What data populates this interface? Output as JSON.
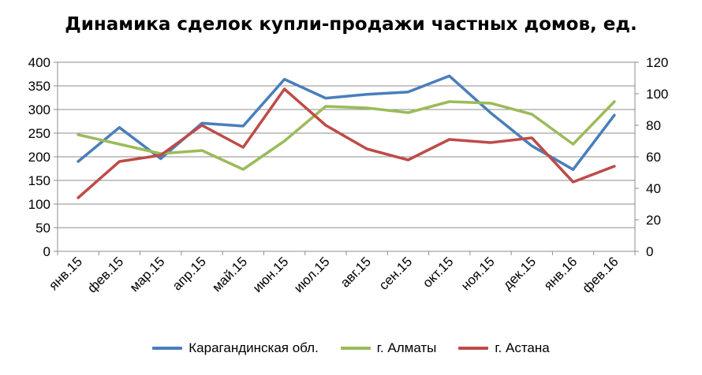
{
  "chart_data": {
    "type": "line",
    "title": "Динамика сделок купли-продажи частных домов, ед.",
    "categories": [
      "янв.15",
      "фев.15",
      "мар.15",
      "апр.15",
      "май.15",
      "июн.15",
      "июл.15",
      "авг.15",
      "сен.15",
      "окт.15",
      "ноя.15",
      "дек.15",
      "янв.16",
      "фев.16"
    ],
    "y_left": {
      "min": 0,
      "max": 400,
      "step": 50,
      "ticks": [
        "0",
        "50",
        "100",
        "150",
        "200",
        "250",
        "300",
        "350",
        "400"
      ]
    },
    "y_right": {
      "min": 0,
      "max": 120,
      "step": 20,
      "ticks": [
        "0",
        "20",
        "40",
        "60",
        "80",
        "100",
        "120"
      ]
    },
    "grid": true,
    "legend_position": "bottom",
    "series": [
      {
        "name": "Карагандинская обл.",
        "color": "#4a7ebb",
        "axis": "left",
        "values": [
          190,
          262,
          196,
          271,
          265,
          364,
          324,
          332,
          337,
          371,
          293,
          223,
          173,
          288
        ]
      },
      {
        "name": "г. Алматы",
        "color": "#9bbb59",
        "axis": "right",
        "values": [
          74,
          68,
          62,
          64,
          52,
          70,
          92,
          91,
          88,
          95,
          94,
          87,
          68,
          95
        ]
      },
      {
        "name": "г. Астана",
        "color": "#be4b48",
        "axis": "right",
        "values": [
          34,
          57,
          61,
          80,
          66,
          103,
          80,
          65,
          58,
          71,
          69,
          72,
          44,
          54
        ]
      }
    ]
  }
}
